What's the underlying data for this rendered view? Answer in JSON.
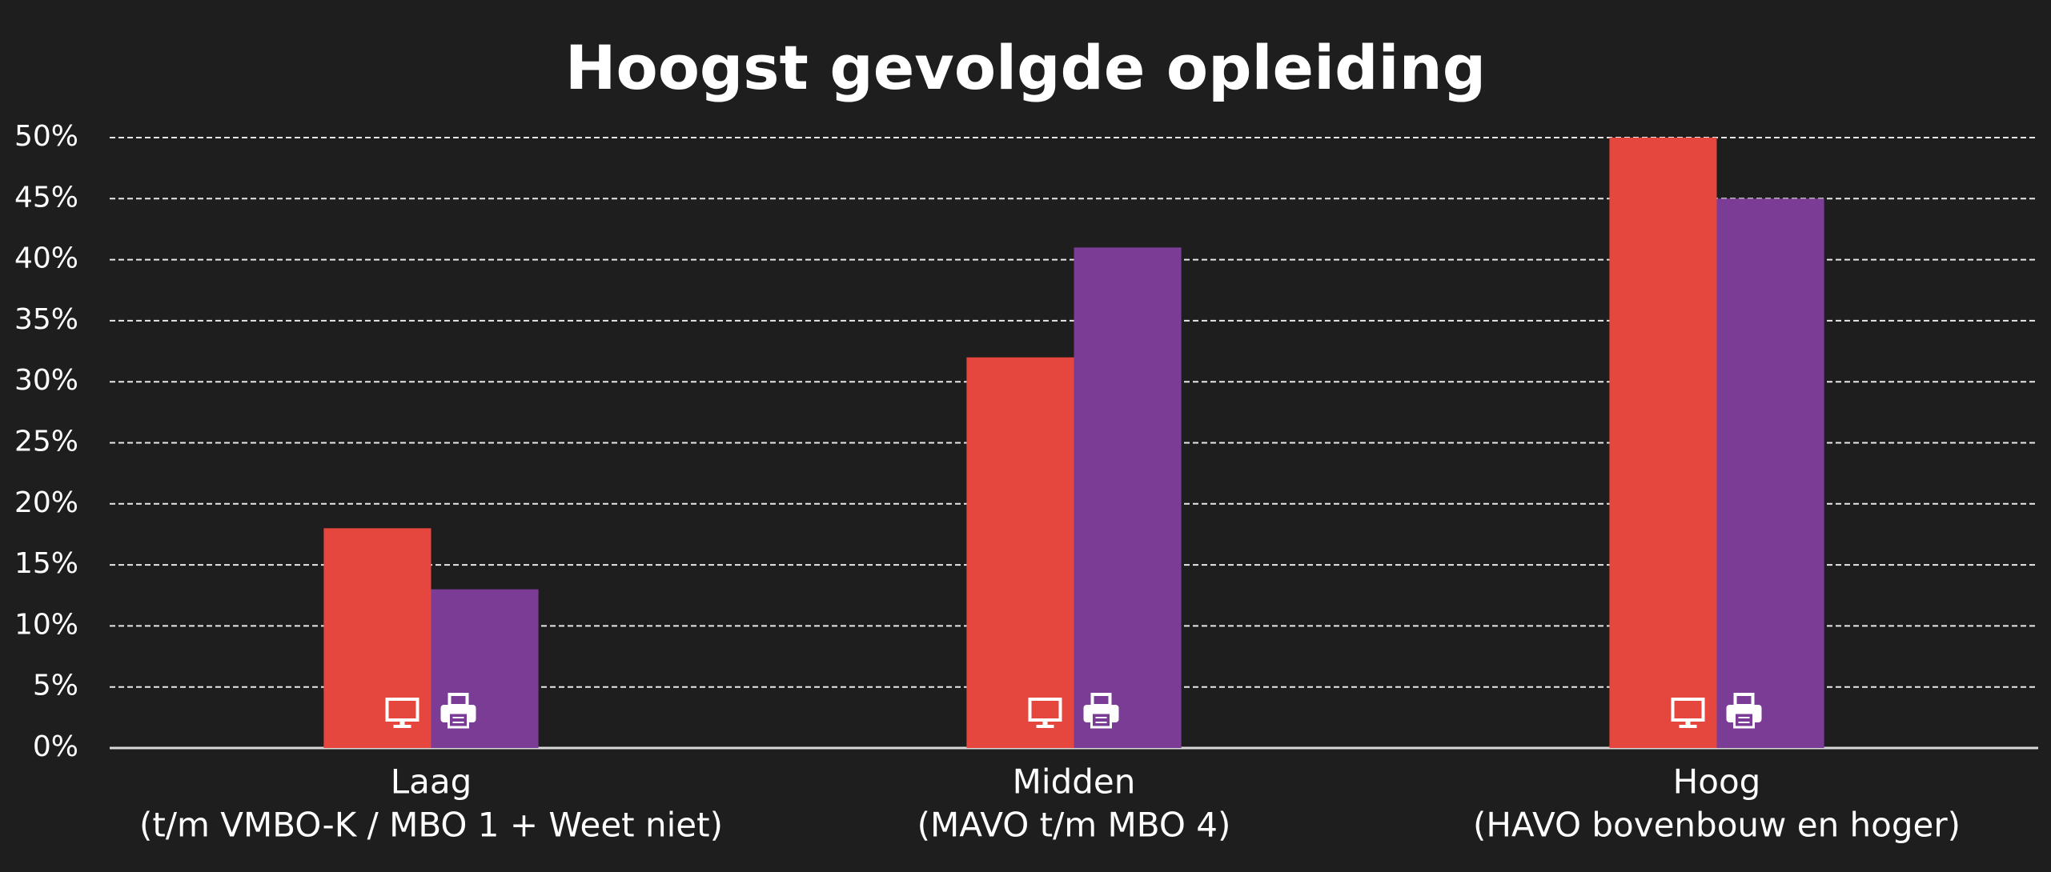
{
  "chart_data": {
    "type": "bar",
    "title": "Hoogst gevolgde opleiding",
    "categories": [
      [
        "Laag",
        "(t/m VMBO-K / MBO 1 + Weet niet)"
      ],
      [
        "Midden",
        "(MAVO t/m MBO 4)"
      ],
      [
        "Hoog",
        "(HAVO bovenbouw en hoger)"
      ]
    ],
    "series": [
      {
        "color": "#e5463d",
        "values": [
          18,
          32,
          50
        ]
      },
      {
        "color": "#7b3c96",
        "values": [
          13,
          41,
          45
        ]
      }
    ],
    "ylim": [
      0,
      50
    ],
    "yticks": [
      {
        "value": 0,
        "label": "0%"
      },
      {
        "value": 5,
        "label": "5%"
      },
      {
        "value": 10,
        "label": "10%"
      },
      {
        "value": 15,
        "label": "15%"
      },
      {
        "value": 20,
        "label": "20%"
      },
      {
        "value": 25,
        "label": "25%"
      },
      {
        "value": 30,
        "label": "30%"
      },
      {
        "value": 35,
        "label": "35%"
      },
      {
        "value": 40,
        "label": "40%"
      },
      {
        "value": 45,
        "label": "45%"
      },
      {
        "value": 50,
        "label": "50%"
      }
    ],
    "grid": true
  }
}
